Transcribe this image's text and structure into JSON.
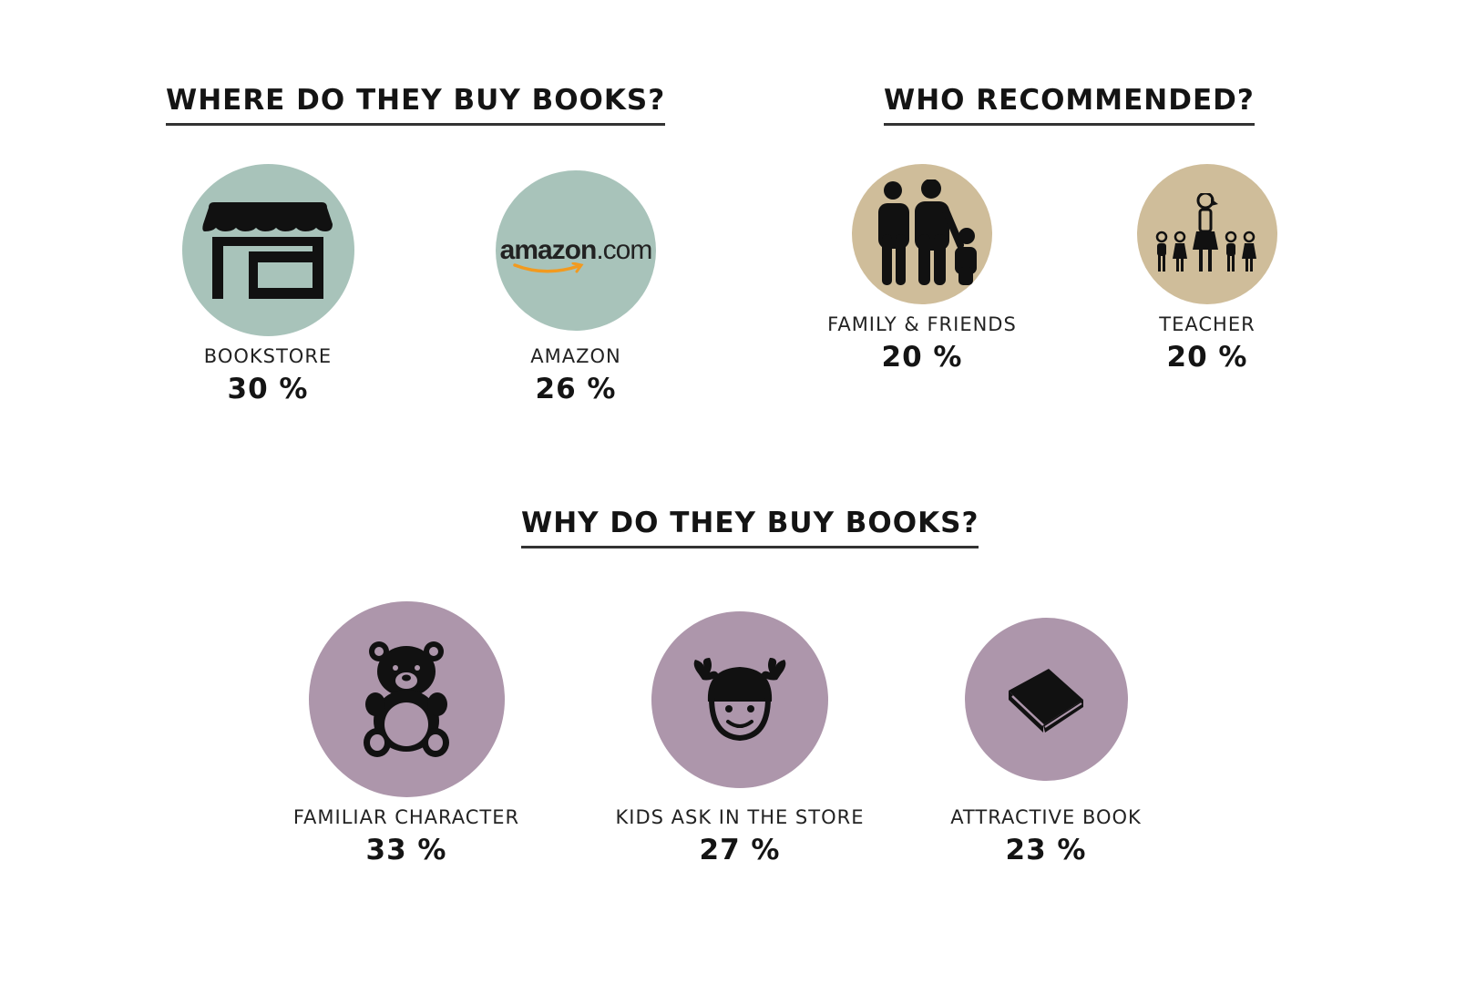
{
  "headings": {
    "where": "WHERE DO THEY BUY BOOKS?",
    "who": "WHO RECOMMENDED?",
    "why": "WHY DO THEY BUY BOOKS?"
  },
  "colors": {
    "where": "#a8c3ba",
    "who": "#cfbd9a",
    "why": "#ad96ab"
  },
  "chart_data": [
    {
      "type": "bubble",
      "title": "WHERE DO THEY BUY BOOKS?",
      "categories": [
        "BOOKSTORE",
        "AMAZON"
      ],
      "values": [
        30,
        26
      ],
      "value_labels": [
        "30 %",
        "26 %"
      ],
      "icons": [
        "store-icon",
        "amazon-logo"
      ],
      "color": "#a8c3ba"
    },
    {
      "type": "bubble",
      "title": "WHO RECOMMENDED?",
      "categories": [
        "FAMILY & FRIENDS",
        "TEACHER"
      ],
      "values": [
        20,
        20
      ],
      "value_labels": [
        "20 %",
        "20 %"
      ],
      "icons": [
        "family-icon",
        "teacher-with-kids-icon"
      ],
      "color": "#cfbd9a"
    },
    {
      "type": "bubble",
      "title": "WHY DO THEY BUY BOOKS?",
      "categories": [
        "FAMILIAR CHARACTER",
        "KIDS ASK IN THE STORE",
        "ATTRACTIVE BOOK"
      ],
      "values": [
        33,
        27,
        23
      ],
      "value_labels": [
        "33 %",
        "27 %",
        "23 %"
      ],
      "icons": [
        "teddy-bear-icon",
        "girl-face-icon",
        "book-icon"
      ],
      "color": "#ad96ab"
    }
  ],
  "amazon_logo": {
    "word": "amazon",
    "suffix": ".com"
  }
}
